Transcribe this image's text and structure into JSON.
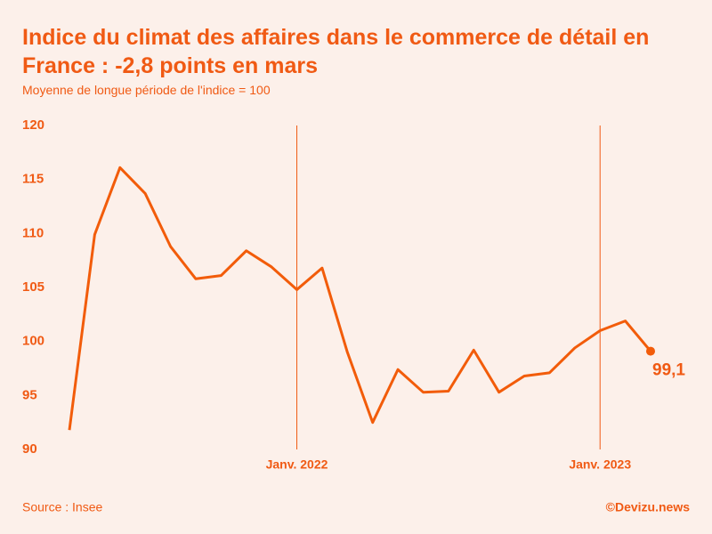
{
  "chart_data": {
    "type": "line",
    "title": "Indice du climat des affaires dans le commerce de détail en France : -2,8 points en mars",
    "subtitle": "Moyenne de longue période de l'indice = 100",
    "source": "Source : Insee",
    "credit": "©Devizu.news",
    "categories": [
      null,
      null,
      null,
      null,
      null,
      null,
      null,
      null,
      null,
      "Janv. 2022",
      null,
      null,
      null,
      null,
      null,
      null,
      null,
      null,
      null,
      null,
      null,
      "Janv. 2023",
      null,
      null
    ],
    "series": [
      {
        "name": "Indice",
        "color": "#f25c0a",
        "values": [
          91.8,
          109.9,
          116.1,
          113.7,
          108.8,
          105.8,
          106.1,
          108.4,
          106.9,
          104.8,
          106.8,
          99.0,
          92.5,
          97.4,
          95.3,
          95.4,
          99.2,
          95.3,
          96.8,
          97.1,
          99.4,
          101.0,
          101.9,
          99.1
        ],
        "value_labels": [
          null,
          null,
          null,
          null,
          null,
          null,
          null,
          null,
          null,
          null,
          null,
          null,
          null,
          null,
          null,
          null,
          null,
          null,
          null,
          null,
          null,
          null,
          null,
          "99,1"
        ]
      }
    ],
    "ylim": [
      90,
      120
    ],
    "yticks": [
      90,
      95,
      100,
      105,
      110,
      115,
      120
    ],
    "grid": false
  }
}
